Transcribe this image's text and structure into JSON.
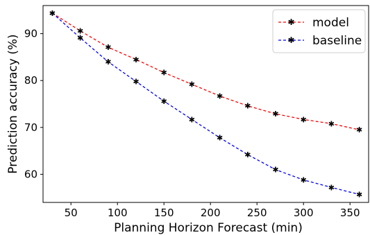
{
  "chart_data": {
    "type": "line",
    "title": "",
    "xlabel": "Planning Horizon Forecast (min)",
    "ylabel": "Prediction accuracy (%)",
    "xlim": [
      20,
      370
    ],
    "ylim": [
      54,
      96
    ],
    "xticks": [
      50,
      100,
      150,
      200,
      250,
      300,
      350
    ],
    "yticks": [
      60,
      70,
      80,
      90
    ],
    "grid": false,
    "legend_position": "top-right",
    "x": [
      30,
      60,
      90,
      120,
      150,
      180,
      210,
      240,
      270,
      300,
      330,
      360
    ],
    "series": [
      {
        "name": "model",
        "color": "#ff0000",
        "line_style": "dashed",
        "marker": "star",
        "values": [
          94.4,
          90.6,
          87.1,
          84.5,
          81.7,
          79.2,
          76.7,
          74.6,
          72.9,
          71.7,
          70.8,
          69.5
        ]
      },
      {
        "name": "baseline",
        "color": "#0000ff",
        "line_style": "dashed",
        "marker": "star",
        "values": [
          94.4,
          89.1,
          84.0,
          79.8,
          75.6,
          71.7,
          67.8,
          64.2,
          61.0,
          58.8,
          57.2,
          55.7
        ]
      }
    ]
  }
}
